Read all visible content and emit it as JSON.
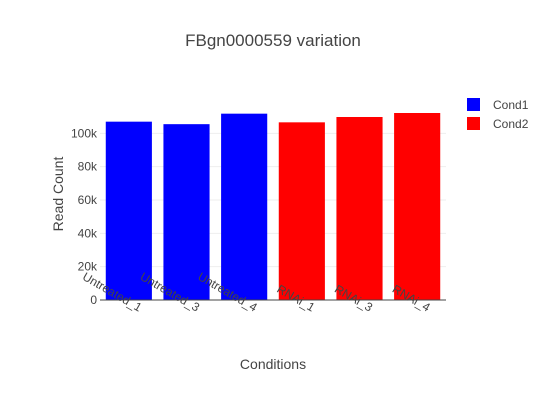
{
  "chart_data": {
    "type": "bar",
    "title": "FBgn0000559  variation",
    "xlabel": "Conditions",
    "ylabel": "Read Count",
    "categories": [
      "Untreated_1",
      "Untreated_3",
      "Untreated_4",
      "RNAi_1",
      "RNAi_3",
      "RNAi_4"
    ],
    "ylim": [
      0,
      120000
    ],
    "yticks": [
      0,
      20000,
      40000,
      60000,
      80000,
      100000
    ],
    "ytick_labels": [
      "0",
      "20k",
      "40k",
      "60k",
      "80k",
      "100k"
    ],
    "grid": true,
    "legend_position": "top-right",
    "series": [
      {
        "name": "Cond1",
        "color": "#0000ff",
        "values": [
          107000,
          105500,
          111800,
          null,
          null,
          null
        ]
      },
      {
        "name": "Cond2",
        "color": "#ff0000",
        "values": [
          null,
          null,
          null,
          106600,
          109800,
          112200
        ]
      }
    ]
  }
}
